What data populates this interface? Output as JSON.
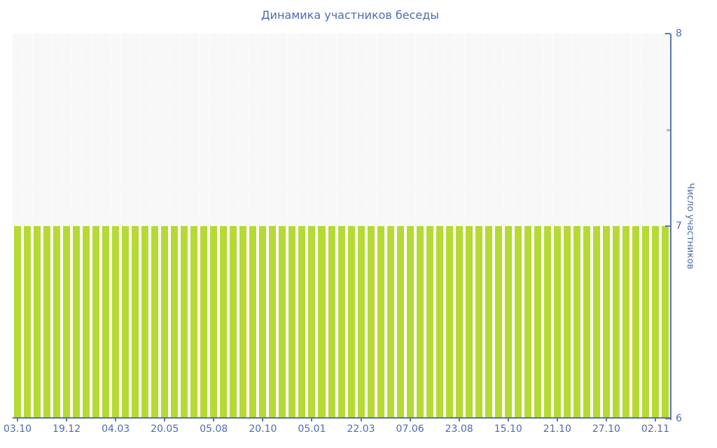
{
  "colors": {
    "bar": "#b5da35",
    "axis": "#5a74b0",
    "text": "#4b6cb2",
    "minor_tick": "#b5b5b5",
    "plot_bg": "#f8f8f8"
  },
  "chart_data": {
    "type": "bar",
    "title": "Динамика участников беседы",
    "xlabel": "",
    "ylabel": "Число участников",
    "ylim": [
      6,
      8
    ],
    "yticks_major": [
      6,
      7,
      8
    ],
    "yticks_minor": [
      7.5
    ],
    "x_tick_labels": [
      "03.10",
      "19.12",
      "04.03",
      "20.05",
      "05.08",
      "20.10",
      "05.01",
      "22.03",
      "07.06",
      "23.08",
      "15.10",
      "21.10",
      "27.10",
      "02.11"
    ],
    "x_tick_every": 5,
    "bar_count": 67,
    "values": [
      7,
      7,
      7,
      7,
      7,
      7,
      7,
      7,
      7,
      7,
      7,
      7,
      7,
      7,
      7,
      7,
      7,
      7,
      7,
      7,
      7,
      7,
      7,
      7,
      7,
      7,
      7,
      7,
      7,
      7,
      7,
      7,
      7,
      7,
      7,
      7,
      7,
      7,
      7,
      7,
      7,
      7,
      7,
      7,
      7,
      7,
      7,
      7,
      7,
      7,
      7,
      7,
      7,
      7,
      7,
      7,
      7,
      7,
      7,
      7,
      7,
      7,
      7,
      7,
      7,
      7,
      7
    ],
    "legend": "none",
    "grid": "faint white dotted vertical lines in upper band",
    "axis_position": "right"
  }
}
